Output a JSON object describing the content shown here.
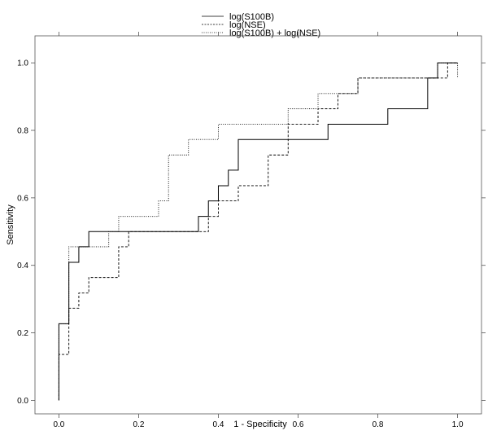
{
  "chart_data": {
    "type": "line",
    "title": "",
    "xlabel": "1 - Specificity",
    "ylabel": "Sensitivity",
    "xlim": [
      -0.06,
      1.06
    ],
    "ylim": [
      -0.04,
      1.08
    ],
    "x_ticks": [
      0.0,
      0.2,
      0.4,
      0.6,
      0.8,
      1.0
    ],
    "x_tick_labels": [
      "0.0",
      "0.2",
      "0.4",
      "0.6",
      "0.8",
      "1.0"
    ],
    "y_ticks": [
      0.0,
      0.2,
      0.4,
      0.6,
      0.8,
      1.0
    ],
    "y_tick_labels": [
      "0.0",
      "0.2",
      "0.4",
      "0.6",
      "0.8",
      "1.0"
    ],
    "grid": false,
    "legend_position": "top-center",
    "series": [
      {
        "name": "log(S100B)",
        "line_style": "solid",
        "color": "#000000",
        "points": [
          [
            0.0,
            0.0
          ],
          [
            0.0,
            0.227
          ],
          [
            0.025,
            0.227
          ],
          [
            0.025,
            0.409
          ],
          [
            0.05,
            0.409
          ],
          [
            0.05,
            0.455
          ],
          [
            0.075,
            0.455
          ],
          [
            0.075,
            0.5
          ],
          [
            0.35,
            0.5
          ],
          [
            0.35,
            0.545
          ],
          [
            0.375,
            0.545
          ],
          [
            0.375,
            0.591
          ],
          [
            0.4,
            0.591
          ],
          [
            0.4,
            0.636
          ],
          [
            0.425,
            0.636
          ],
          [
            0.425,
            0.682
          ],
          [
            0.45,
            0.682
          ],
          [
            0.45,
            0.773
          ],
          [
            0.675,
            0.773
          ],
          [
            0.675,
            0.818
          ],
          [
            0.825,
            0.818
          ],
          [
            0.825,
            0.864
          ],
          [
            0.925,
            0.864
          ],
          [
            0.925,
            0.955
          ],
          [
            0.95,
            0.955
          ],
          [
            0.95,
            1.0
          ],
          [
            1.0,
            1.0
          ]
        ]
      },
      {
        "name": "log(NSE)",
        "line_style": "dashed",
        "color": "#000000",
        "points": [
          [
            0.0,
            0.0
          ],
          [
            0.0,
            0.136
          ],
          [
            0.025,
            0.136
          ],
          [
            0.025,
            0.273
          ],
          [
            0.05,
            0.273
          ],
          [
            0.05,
            0.318
          ],
          [
            0.075,
            0.318
          ],
          [
            0.075,
            0.364
          ],
          [
            0.15,
            0.364
          ],
          [
            0.15,
            0.455
          ],
          [
            0.175,
            0.455
          ],
          [
            0.175,
            0.5
          ],
          [
            0.275,
            0.5
          ],
          [
            0.275,
            0.5
          ],
          [
            0.375,
            0.5
          ],
          [
            0.375,
            0.545
          ],
          [
            0.4,
            0.545
          ],
          [
            0.4,
            0.591
          ],
          [
            0.45,
            0.591
          ],
          [
            0.45,
            0.636
          ],
          [
            0.525,
            0.636
          ],
          [
            0.525,
            0.727
          ],
          [
            0.575,
            0.727
          ],
          [
            0.575,
            0.818
          ],
          [
            0.65,
            0.818
          ],
          [
            0.65,
            0.864
          ],
          [
            0.7,
            0.864
          ],
          [
            0.7,
            0.909
          ],
          [
            0.75,
            0.909
          ],
          [
            0.75,
            0.955
          ],
          [
            0.975,
            0.955
          ],
          [
            0.975,
            1.0
          ],
          [
            1.0,
            1.0
          ]
        ]
      },
      {
        "name": "log(S100B) + log(NSE)",
        "line_style": "dotted",
        "color": "#000000",
        "points": [
          [
            0.0,
            0.0
          ],
          [
            0.0,
            0.227
          ],
          [
            0.025,
            0.227
          ],
          [
            0.025,
            0.455
          ],
          [
            0.125,
            0.455
          ],
          [
            0.125,
            0.5
          ],
          [
            0.15,
            0.5
          ],
          [
            0.15,
            0.545
          ],
          [
            0.25,
            0.545
          ],
          [
            0.25,
            0.591
          ],
          [
            0.275,
            0.591
          ],
          [
            0.275,
            0.727
          ],
          [
            0.325,
            0.727
          ],
          [
            0.325,
            0.773
          ],
          [
            0.4,
            0.773
          ],
          [
            0.4,
            0.818
          ],
          [
            0.575,
            0.818
          ],
          [
            0.575,
            0.864
          ],
          [
            0.65,
            0.864
          ],
          [
            0.65,
            0.909
          ],
          [
            0.75,
            0.909
          ],
          [
            0.75,
            0.955
          ],
          [
            0.95,
            0.955
          ],
          [
            0.95,
            1.0
          ],
          [
            1.0,
            1.0
          ],
          [
            1.0,
            0.955
          ]
        ]
      }
    ]
  }
}
